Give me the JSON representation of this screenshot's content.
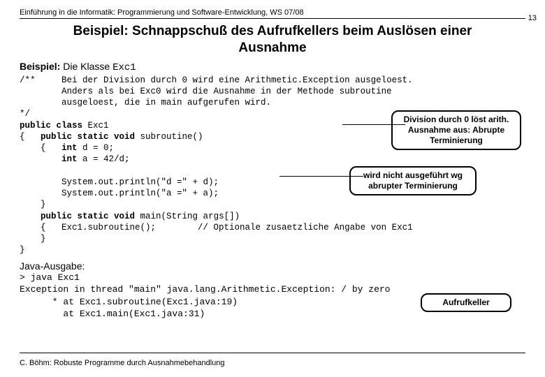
{
  "header": "Einführung in die Informatik: Programmierung und Software-Entwicklung, WS 07/08",
  "page_number": "13",
  "title_line1": "Beispiel: Schnappschuß des Aufrufkellers beim Auslösen einer",
  "title_line2": "Ausnahme",
  "subtitle_prefix": "Beispiel:",
  "subtitle_rest": " Die Klasse ",
  "subtitle_code": "Exc1",
  "code": {
    "l01": "/**     Bei der Division durch 0 wird eine Arithmetic.Exception ausgeloest.",
    "l02": "        Anders als bei Exc0 wird die Ausnahme in der Methode subroutine",
    "l03": "        ausgeloest, die in main aufgerufen wird.",
    "l04": "*/",
    "l05a": "public class ",
    "l05b": "Exc1",
    "l06a": "{   ",
    "l06b": "public static void ",
    "l06c": "subroutine()",
    "l07a": "    {   ",
    "l07b": "int ",
    "l07c": "d = 0;",
    "l08a": "        ",
    "l08b": "int ",
    "l08c": "a = 42/d;",
    "l09": "",
    "l10": "        System.out.println(\"d =\" + d);",
    "l11": "        System.out.println(\"a =\" + a);",
    "l12": "    }",
    "l13a": "    ",
    "l13b": "public static void ",
    "l13c": "main(String args[])",
    "l14": "    {   Exc1.subroutine();        // Optionale zusaetzliche Angabe von Exc1",
    "l15": "    }",
    "l16": "}"
  },
  "callout1_l1": "Division durch 0 löst arith.",
  "callout1_l2": "Ausnahme aus: Abrupte",
  "callout1_l3": "Terminierung",
  "callout2_l1": "wird nicht ausgeführt wg",
  "callout2_l2": "abrupter Terminierung",
  "callout3": "Aufrufkeller",
  "output_label": "Java-Ausgabe:",
  "out1": "> java Exc1",
  "out2": "Exception in thread \"main\" java.lang.Arithmetic.Exception: / by zero",
  "out3": "      * at Exc1.subroutine(Exc1.java:19)",
  "out4": "        at Exc1.main(Exc1.java:31)",
  "footer": "C. Böhm: Robuste Programme durch Ausnahmebehandlung",
  "colors": {
    "text": "#000000",
    "bg": "#ffffff",
    "border": "#000000"
  }
}
